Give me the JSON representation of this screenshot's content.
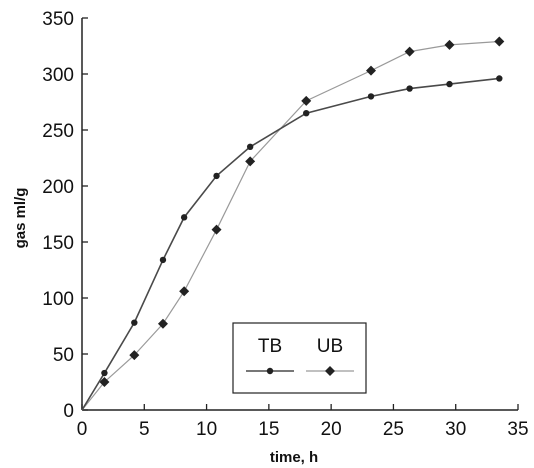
{
  "chart_data": {
    "type": "line",
    "title": "",
    "xlabel": "time, h",
    "ylabel": "gas ml/g",
    "xlim": [
      0,
      35
    ],
    "ylim": [
      0,
      350
    ],
    "xticks": [
      0,
      5,
      10,
      15,
      20,
      25,
      30,
      35
    ],
    "yticks": [
      0,
      50,
      100,
      150,
      200,
      250,
      300,
      350
    ],
    "grid": false,
    "legend_position": "bottom-center",
    "series": [
      {
        "name": "TB",
        "marker": "circle",
        "color": "#4a4a4a",
        "x": [
          0,
          1.8,
          4.2,
          6.5,
          8.2,
          10.8,
          13.5,
          18,
          23.2,
          26.3,
          29.5,
          33.5
        ],
        "y": [
          0,
          33,
          78,
          134,
          172,
          209,
          235,
          265,
          280,
          287,
          291,
          296
        ]
      },
      {
        "name": "UB",
        "marker": "diamond",
        "color": "#9a9a9a",
        "x": [
          0,
          1.8,
          4.2,
          6.5,
          8.2,
          10.8,
          13.5,
          18,
          23.2,
          26.3,
          29.5,
          33.5
        ],
        "y": [
          0,
          25,
          49,
          77,
          106,
          161,
          222,
          276,
          303,
          320,
          326,
          329
        ]
      }
    ]
  }
}
